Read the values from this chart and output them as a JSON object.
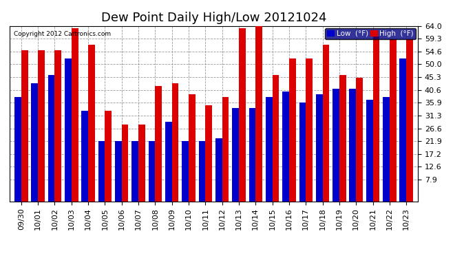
{
  "title": "Dew Point Daily High/Low 20121024",
  "copyright": "Copyright 2012 Cartronics.com",
  "categories": [
    "09/30",
    "10/01",
    "10/02",
    "10/03",
    "10/04",
    "10/05",
    "10/06",
    "10/07",
    "10/08",
    "10/09",
    "10/10",
    "10/11",
    "10/12",
    "10/13",
    "10/14",
    "10/15",
    "10/16",
    "10/17",
    "10/18",
    "10/19",
    "10/20",
    "10/21",
    "10/22",
    "10/23"
  ],
  "low_values": [
    38,
    43,
    46,
    52,
    33,
    22,
    22,
    22,
    22,
    29,
    22,
    22,
    23,
    34,
    34,
    38,
    40,
    36,
    39,
    41,
    41,
    37,
    38,
    52
  ],
  "high_values": [
    55,
    55,
    55,
    63,
    57,
    33,
    28,
    28,
    42,
    43,
    39,
    35,
    38,
    63,
    64,
    46,
    52,
    52,
    57,
    46,
    45,
    60,
    59,
    59
  ],
  "ylim_min": 0,
  "ylim_max": 64.0,
  "yticks": [
    7.9,
    12.6,
    17.2,
    21.9,
    26.6,
    31.3,
    35.9,
    40.6,
    45.3,
    50.0,
    54.6,
    59.3,
    64.0
  ],
  "bar_width": 0.4,
  "low_color": "#0000cc",
  "high_color": "#dd0000",
  "bg_color": "#ffffff",
  "grid_color": "#999999",
  "title_fontsize": 13,
  "tick_fontsize": 8,
  "legend_low_label": "Low  (°F)",
  "legend_high_label": "High  (°F)"
}
